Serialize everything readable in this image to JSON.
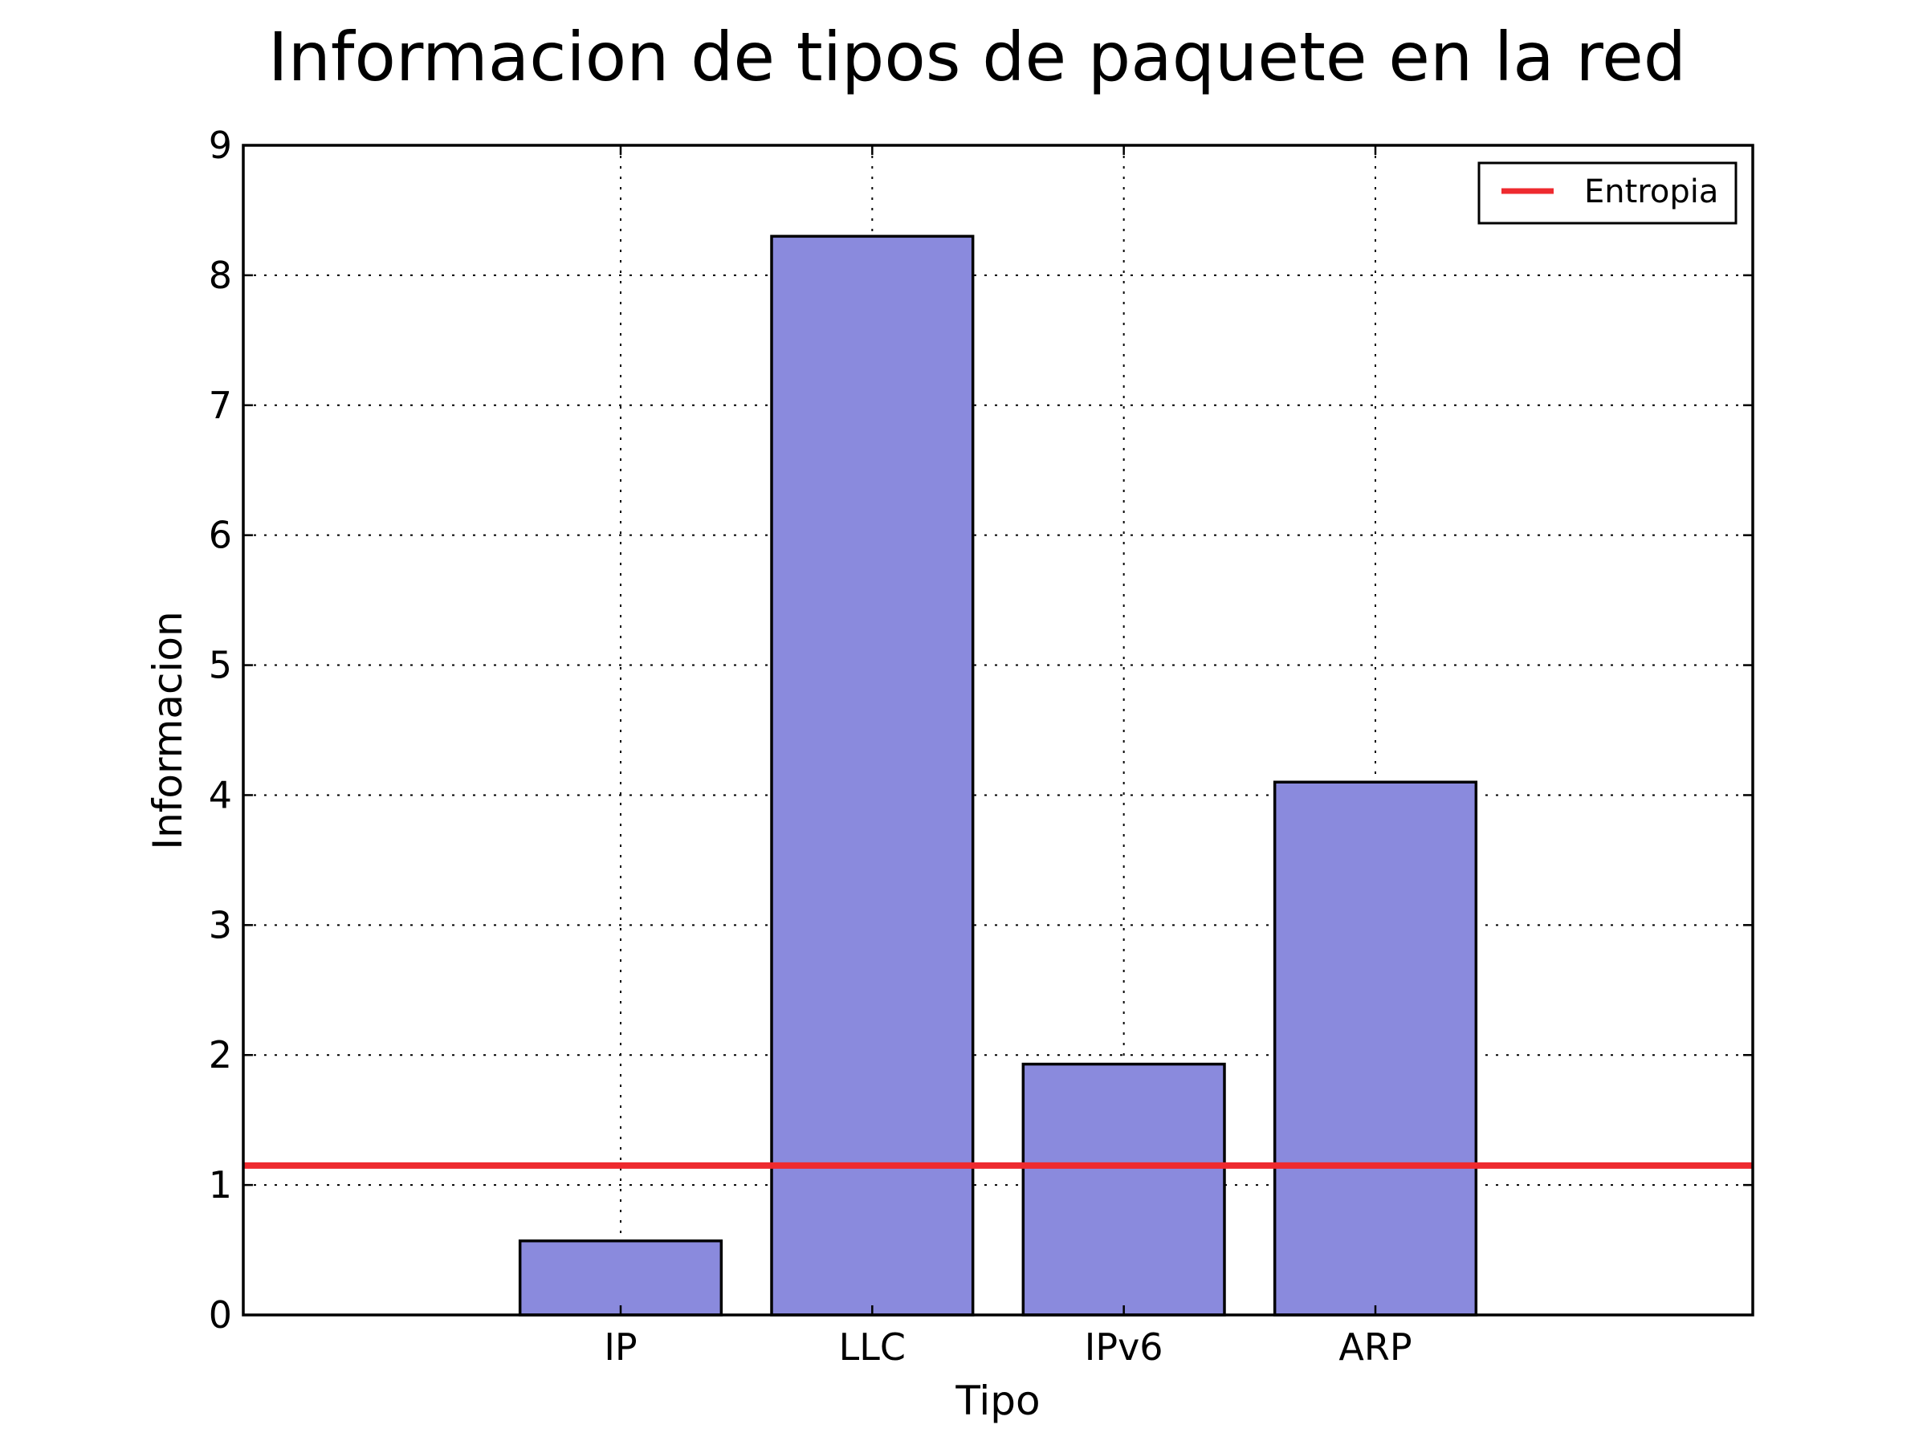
{
  "chart_data": {
    "type": "bar",
    "title": "Informacion de tipos de paquete en la red",
    "xlabel": "Tipo",
    "ylabel": "Informacion",
    "categories": [
      "IP",
      "LLC",
      "IPv6",
      "ARP"
    ],
    "values": [
      0.57,
      8.3,
      1.93,
      4.1
    ],
    "ylim": [
      0,
      9
    ],
    "yticks": [
      0,
      1,
      2,
      3,
      4,
      5,
      6,
      7,
      8,
      9
    ],
    "grid": true,
    "bar_color": "#8a8add",
    "reference_line": {
      "name": "Entropia",
      "value": 1.15,
      "color": "#ee2a2f"
    },
    "legend": {
      "placement": "top-right",
      "entries": [
        "Entropia"
      ]
    }
  }
}
